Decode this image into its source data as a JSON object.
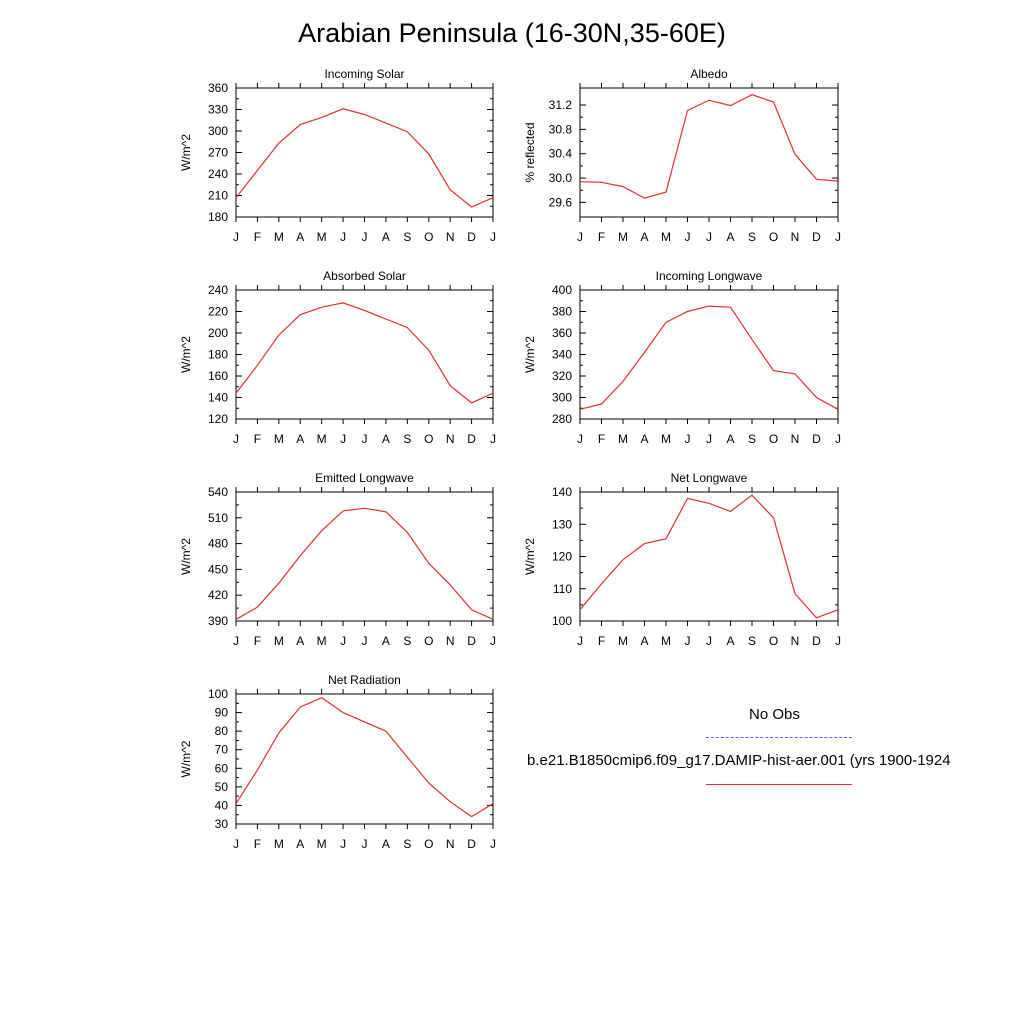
{
  "title": "Arabian Peninsula (16-30N,35-60E)",
  "legend": {
    "obs_label": "No Obs",
    "obs_color": "#5a5af0",
    "model_label": "b.e21.B1850cmip6.f09_g17.DAMIP-hist-aer.001 (yrs 1900-1924",
    "model_color": "#e03030"
  },
  "chart_data": [
    {
      "type": "line",
      "title": "Incoming Solar",
      "ylabel": "W/m^2",
      "categories": [
        "J",
        "F",
        "M",
        "A",
        "M",
        "J",
        "J",
        "A",
        "S",
        "O",
        "N",
        "D",
        "J"
      ],
      "ylim": [
        180,
        360
      ],
      "yticks": [
        180,
        210,
        240,
        270,
        300,
        330,
        360
      ],
      "yticklabels": [
        "180",
        "210",
        "240",
        "270",
        "300",
        "330",
        "360"
      ],
      "series": [
        {
          "values": [
            207,
            245,
            283,
            309,
            319,
            331,
            323,
            311,
            299,
            268,
            218,
            194,
            207
          ]
        }
      ]
    },
    {
      "type": "line",
      "title": "Albedo",
      "ylabel": "% reflected",
      "categories": [
        "J",
        "F",
        "M",
        "A",
        "M",
        "J",
        "J",
        "A",
        "S",
        "O",
        "N",
        "D",
        "J"
      ],
      "ylim": [
        29.36,
        31.48
      ],
      "yticks": [
        29.6,
        30.0,
        30.4,
        30.8,
        31.2
      ],
      "yticklabels": [
        "29.6",
        "30.0",
        "30.4",
        "30.8",
        "31.2"
      ],
      "series": [
        {
          "values": [
            29.94,
            29.93,
            29.86,
            29.67,
            29.77,
            31.11,
            31.28,
            31.19,
            31.37,
            31.25,
            30.39,
            29.98,
            29.95
          ]
        }
      ]
    },
    {
      "type": "line",
      "title": "Absorbed Solar",
      "ylabel": "W/m^2",
      "categories": [
        "J",
        "F",
        "M",
        "A",
        "M",
        "J",
        "J",
        "A",
        "S",
        "O",
        "N",
        "D",
        "J"
      ],
      "ylim": [
        120,
        240
      ],
      "yticks": [
        120,
        140,
        160,
        180,
        200,
        220,
        240
      ],
      "yticklabels": [
        "120",
        "140",
        "160",
        "180",
        "200",
        "220",
        "240"
      ],
      "series": [
        {
          "values": [
            144,
            170,
            198,
            217,
            224,
            228,
            221,
            213,
            205,
            184,
            151,
            135,
            144
          ]
        }
      ]
    },
    {
      "type": "line",
      "title": "Incoming Longwave",
      "ylabel": "W/m^2",
      "categories": [
        "J",
        "F",
        "M",
        "A",
        "M",
        "J",
        "J",
        "A",
        "S",
        "O",
        "N",
        "D",
        "J"
      ],
      "ylim": [
        280,
        400
      ],
      "yticks": [
        280,
        300,
        320,
        340,
        360,
        380,
        400
      ],
      "yticklabels": [
        "280",
        "300",
        "320",
        "340",
        "360",
        "380",
        "400"
      ],
      "series": [
        {
          "values": [
            289,
            294,
            315,
            342,
            370,
            380,
            385,
            384,
            354,
            325,
            322,
            300,
            289
          ]
        }
      ]
    },
    {
      "type": "line",
      "title": "Emitted Longwave",
      "ylabel": "W/m^2",
      "categories": [
        "J",
        "F",
        "M",
        "A",
        "M",
        "J",
        "J",
        "A",
        "S",
        "O",
        "N",
        "D",
        "J"
      ],
      "ylim": [
        390,
        540
      ],
      "yticks": [
        390,
        420,
        450,
        480,
        510,
        540
      ],
      "yticklabels": [
        "390",
        "420",
        "450",
        "480",
        "510",
        "540"
      ],
      "series": [
        {
          "values": [
            392,
            406,
            434,
            466,
            495,
            518,
            521,
            517,
            493,
            457,
            432,
            403,
            392
          ]
        }
      ]
    },
    {
      "type": "line",
      "title": "Net Longwave",
      "ylabel": "W/m^2",
      "categories": [
        "J",
        "F",
        "M",
        "A",
        "M",
        "J",
        "J",
        "A",
        "S",
        "O",
        "N",
        "D",
        "J"
      ],
      "ylim": [
        100,
        140
      ],
      "yticks": [
        100,
        110,
        120,
        130,
        140
      ],
      "yticklabels": [
        "100",
        "110",
        "120",
        "130",
        "140"
      ],
      "series": [
        {
          "values": [
            103.5,
            111.5,
            119,
            124,
            125.5,
            138,
            136.5,
            134,
            139,
            132,
            108.5,
            101,
            103.5
          ]
        }
      ]
    },
    {
      "type": "line",
      "title": "Net Radiation",
      "ylabel": "W/m^2",
      "categories": [
        "J",
        "F",
        "M",
        "A",
        "M",
        "J",
        "J",
        "A",
        "S",
        "O",
        "N",
        "D",
        "J"
      ],
      "ylim": [
        30,
        100
      ],
      "yticks": [
        30,
        40,
        50,
        60,
        70,
        80,
        90,
        100
      ],
      "yticklabels": [
        "30",
        "40",
        "50",
        "60",
        "70",
        "80",
        "90",
        "100"
      ],
      "series": [
        {
          "values": [
            41,
            59,
            79,
            93,
            98,
            90,
            85,
            80,
            66,
            52,
            42,
            34,
            41
          ]
        }
      ]
    }
  ]
}
